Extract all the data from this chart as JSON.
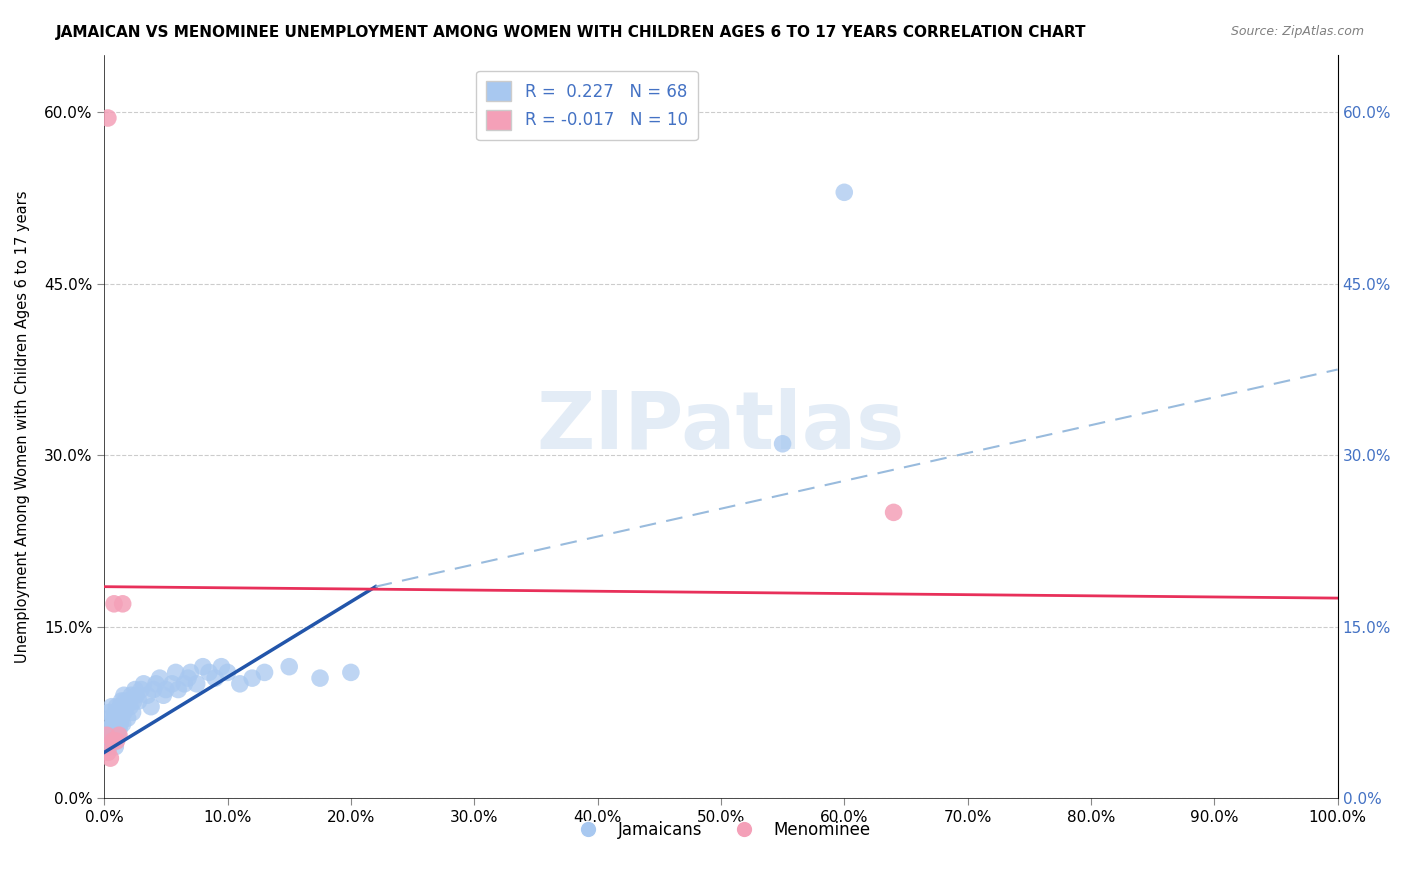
{
  "title": "JAMAICAN VS MENOMINEE UNEMPLOYMENT AMONG WOMEN WITH CHILDREN AGES 6 TO 17 YEARS CORRELATION CHART",
  "source": "Source: ZipAtlas.com",
  "ylabel": "Unemployment Among Women with Children Ages 6 to 17 years",
  "xlim": [
    0,
    1.0
  ],
  "ylim": [
    0,
    0.65
  ],
  "jamaicans_R": 0.227,
  "jamaicans_N": 68,
  "menominee_R": -0.017,
  "menominee_N": 10,
  "jamaicans_color": "#a8c8f0",
  "menominee_color": "#f4a0b8",
  "trend_jamaicans_solid_color": "#2255aa",
  "trend_jamaicans_dashed_color": "#99bbdd",
  "trend_menominee_color": "#e8305a",
  "watermark_text": "ZIPatlas",
  "jamaicans_x": [
    0.002,
    0.003,
    0.004,
    0.004,
    0.005,
    0.005,
    0.006,
    0.006,
    0.007,
    0.007,
    0.008,
    0.008,
    0.009,
    0.009,
    0.01,
    0.01,
    0.011,
    0.011,
    0.012,
    0.012,
    0.013,
    0.013,
    0.014,
    0.014,
    0.015,
    0.015,
    0.016,
    0.016,
    0.017,
    0.018,
    0.019,
    0.02,
    0.021,
    0.022,
    0.023,
    0.024,
    0.025,
    0.026,
    0.028,
    0.03,
    0.032,
    0.035,
    0.038,
    0.04,
    0.042,
    0.045,
    0.048,
    0.05,
    0.055,
    0.058,
    0.06,
    0.065,
    0.068,
    0.07,
    0.075,
    0.08,
    0.085,
    0.09,
    0.095,
    0.1,
    0.11,
    0.12,
    0.13,
    0.15,
    0.175,
    0.2,
    0.55,
    0.6
  ],
  "jamaicans_y": [
    0.055,
    0.06,
    0.045,
    0.075,
    0.05,
    0.07,
    0.06,
    0.08,
    0.05,
    0.065,
    0.055,
    0.07,
    0.045,
    0.075,
    0.06,
    0.08,
    0.055,
    0.07,
    0.06,
    0.075,
    0.065,
    0.08,
    0.07,
    0.085,
    0.065,
    0.08,
    0.075,
    0.09,
    0.085,
    0.08,
    0.07,
    0.085,
    0.08,
    0.09,
    0.075,
    0.085,
    0.095,
    0.09,
    0.085,
    0.095,
    0.1,
    0.09,
    0.08,
    0.095,
    0.1,
    0.105,
    0.09,
    0.095,
    0.1,
    0.11,
    0.095,
    0.1,
    0.105,
    0.11,
    0.1,
    0.115,
    0.11,
    0.105,
    0.115,
    0.11,
    0.1,
    0.105,
    0.11,
    0.115,
    0.105,
    0.11,
    0.31,
    0.53
  ],
  "menominee_x": [
    0.002,
    0.003,
    0.005,
    0.007,
    0.008,
    0.01,
    0.012,
    0.015,
    0.64,
    0.003
  ],
  "menominee_y": [
    0.055,
    0.04,
    0.035,
    0.05,
    0.17,
    0.05,
    0.055,
    0.17,
    0.25,
    0.595
  ],
  "trend_j_x0": 0.0,
  "trend_j_y0": 0.04,
  "trend_j_x1": 0.22,
  "trend_j_y1": 0.185,
  "trend_j_dashed_x0": 0.22,
  "trend_j_dashed_y0": 0.185,
  "trend_j_dashed_x1": 1.0,
  "trend_j_dashed_y1": 0.375,
  "trend_mn_x0": 0.0,
  "trend_mn_y0": 0.185,
  "trend_mn_x1": 1.0,
  "trend_mn_y1": 0.175
}
